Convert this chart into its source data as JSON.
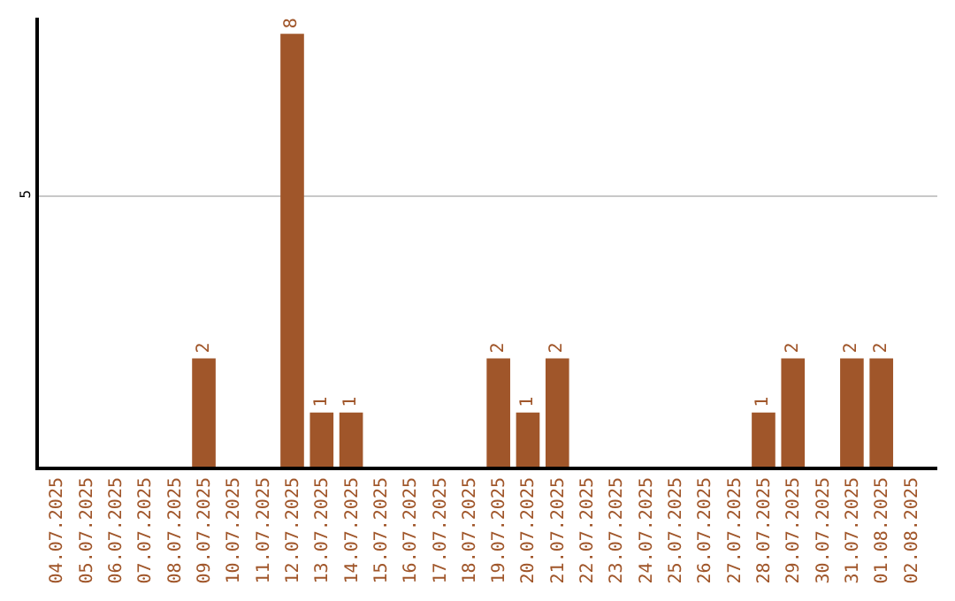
{
  "chart_data": {
    "type": "bar",
    "categories": [
      "04.07.2025",
      "05.07.2025",
      "06.07.2025",
      "07.07.2025",
      "08.07.2025",
      "09.07.2025",
      "10.07.2025",
      "11.07.2025",
      "12.07.2025",
      "13.07.2025",
      "14.07.2025",
      "15.07.2025",
      "16.07.2025",
      "17.07.2025",
      "18.07.2025",
      "19.07.2025",
      "20.07.2025",
      "21.07.2025",
      "22.07.2025",
      "23.07.2025",
      "24.07.2025",
      "25.07.2025",
      "26.07.2025",
      "27.07.2025",
      "28.07.2025",
      "29.07.2025",
      "30.07.2025",
      "31.07.2025",
      "01.08.2025",
      "02.08.2025"
    ],
    "values": [
      0,
      0,
      0,
      0,
      0,
      2,
      0,
      0,
      8,
      1,
      1,
      0,
      0,
      0,
      0,
      2,
      1,
      2,
      0,
      0,
      0,
      0,
      0,
      0,
      1,
      2,
      0,
      2,
      2,
      0
    ],
    "value_labels": [
      null,
      null,
      null,
      null,
      null,
      "2",
      null,
      null,
      "8",
      "1",
      "1",
      null,
      null,
      null,
      null,
      "2",
      "1",
      "2",
      null,
      null,
      null,
      null,
      null,
      null,
      "1",
      "2",
      null,
      "2",
      "2",
      null
    ],
    "color": "#a0562a",
    "ylim": [
      0,
      8.3
    ],
    "yticks": [
      5
    ],
    "grid": "y",
    "legend": false
  }
}
